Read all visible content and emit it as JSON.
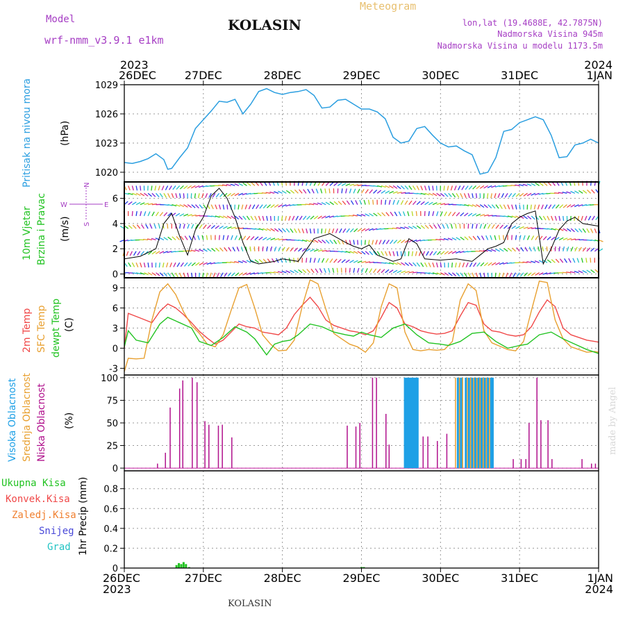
{
  "header": {
    "model_label": "Model",
    "model_name": "wrf-nmm_v3.9.1 e1km",
    "title": "KOLASIN",
    "meteogram": "Meteogram",
    "lonlat": "lon,lat (19.4688E, 42.7875N)",
    "elevation": "Nadmorska Visina 945m",
    "model_elevation": "Nadmorska Visina u modelu 1173.5m"
  },
  "footer": "KOLASIN",
  "signature": "made by Angel",
  "colors": {
    "pressure": "#2a9ee0",
    "temp2m": "#f04848",
    "sfc_temp": "#e8a030",
    "dewpoint": "#22c322",
    "cloud_high": "#1ea0e6",
    "cloud_mid": "#e8a030",
    "cloud_low": "#b0108c",
    "precip_total": "#22c322",
    "grid": "#999999",
    "magenta_label": "#a63ec4"
  },
  "chart_data": [
    {
      "type": "line",
      "panel": "pressure",
      "ylabel": [
        "Pritisak na nivou mora",
        "(hPa)"
      ],
      "ylim": [
        1019,
        1029
      ],
      "yticks": [
        1020,
        1023,
        1026,
        1029
      ],
      "x_top_labels": [
        [
          "2023",
          "26DEC"
        ],
        [
          "",
          "27DEC"
        ],
        [
          "",
          "28DEC"
        ],
        [
          "",
          "29DEC"
        ],
        [
          "",
          "30DEC"
        ],
        [
          "",
          "31DEC"
        ],
        [
          "2024",
          "1JAN"
        ]
      ],
      "series": [
        {
          "x": [
            0,
            0.1,
            0.2,
            0.3,
            0.4,
            0.5,
            0.55,
            0.6,
            0.7,
            0.8,
            0.9,
            1.0,
            1.1,
            1.2,
            1.3,
            1.4,
            1.5,
            1.6,
            1.7,
            1.8,
            1.9,
            2.0,
            2.1,
            2.2,
            2.3,
            2.4,
            2.5,
            2.6,
            2.7,
            2.8,
            2.9,
            3.0,
            3.1,
            3.2,
            3.3,
            3.4,
            3.5,
            3.6,
            3.7,
            3.8,
            3.9,
            4.0,
            4.1,
            4.2,
            4.3,
            4.4,
            4.5,
            4.6,
            4.7,
            4.8,
            4.9,
            5.0,
            5.1,
            5.2,
            5.3,
            5.4,
            5.5,
            5.6,
            5.7,
            5.8,
            5.9,
            6.0
          ],
          "values": [
            1021.0,
            1020.9,
            1021.1,
            1021.4,
            1021.9,
            1021.3,
            1020.3,
            1020.4,
            1021.5,
            1022.5,
            1024.5,
            1025.4,
            1026.3,
            1027.3,
            1027.2,
            1027.5,
            1026.0,
            1027.0,
            1028.3,
            1028.6,
            1028.2,
            1028.0,
            1028.2,
            1028.3,
            1028.5,
            1027.9,
            1026.6,
            1026.7,
            1027.4,
            1027.5,
            1027.0,
            1026.5,
            1026.5,
            1026.2,
            1025.5,
            1023.6,
            1023.0,
            1023.2,
            1024.5,
            1024.7,
            1023.8,
            1023.0,
            1022.6,
            1022.7,
            1022.2,
            1021.8,
            1019.8,
            1020.0,
            1021.5,
            1024.2,
            1024.4,
            1025.1,
            1025.4,
            1025.7,
            1025.4,
            1023.8,
            1021.5,
            1021.6,
            1022.8,
            1023.0,
            1023.4,
            1023.0
          ],
          "name": ""
        }
      ]
    },
    {
      "type": "line",
      "panel": "wind",
      "ylabel": [
        "10m Vjetar",
        "Brzina i Pravac",
        "(m/s)"
      ],
      "compass": {
        "n": "N",
        "s": "S",
        "e": "E",
        "w": "W"
      },
      "ylim": [
        -0.3,
        7.3
      ],
      "yticks": [
        0,
        2,
        4,
        6
      ],
      "series": [
        {
          "name": "wind speed",
          "x": [
            0,
            0.2,
            0.4,
            0.5,
            0.6,
            0.7,
            0.8,
            0.9,
            1.0,
            1.1,
            1.2,
            1.3,
            1.4,
            1.5,
            1.6,
            1.7,
            1.8,
            1.9,
            2.0,
            2.2,
            2.4,
            2.6,
            2.8,
            2.9,
            3.0,
            3.1,
            3.2,
            3.4,
            3.5,
            3.6,
            3.7,
            3.8,
            4.0,
            4.2,
            4.4,
            4.5,
            4.6,
            4.7,
            4.8,
            4.9,
            5.0,
            5.1,
            5.2,
            5.3,
            5.4,
            5.5,
            5.6,
            5.7,
            5.8,
            6.0
          ],
          "values": [
            1.2,
            1.4,
            2.0,
            4.0,
            4.8,
            3.0,
            1.5,
            3.5,
            4.5,
            6.2,
            6.8,
            6.0,
            4.5,
            2.5,
            1.0,
            0.8,
            0.9,
            1.0,
            1.2,
            1.0,
            2.8,
            3.2,
            2.5,
            2.2,
            2.0,
            2.3,
            1.5,
            1.0,
            1.2,
            2.8,
            2.4,
            1.2,
            1.1,
            1.2,
            1.0,
            1.5,
            2.0,
            2.2,
            2.5,
            4.0,
            4.5,
            4.8,
            5.0,
            0.8,
            2.0,
            3.5,
            4.2,
            4.5,
            4.0,
            3.8
          ]
        }
      ]
    },
    {
      "type": "line",
      "panel": "temperature",
      "ylabel": [
        "2m Temp",
        "SFC Temp",
        "dewpt Temp",
        "(C)"
      ],
      "ylim": [
        -4,
        10.5
      ],
      "yticks": [
        -3,
        0,
        3,
        6,
        9
      ],
      "series": [
        {
          "name": "2m Temp",
          "x": [
            0,
            0.05,
            0.2,
            0.35,
            0.45,
            0.55,
            0.65,
            0.75,
            0.85,
            0.95,
            1.05,
            1.15,
            1.25,
            1.35,
            1.45,
            1.55,
            1.65,
            1.75,
            1.85,
            1.95,
            2.05,
            2.15,
            2.25,
            2.35,
            2.45,
            2.55,
            2.65,
            2.75,
            2.85,
            2.95,
            3.05,
            3.15,
            3.25,
            3.35,
            3.45,
            3.55,
            3.65,
            3.75,
            3.85,
            3.95,
            4.05,
            4.15,
            4.25,
            4.35,
            4.45,
            4.55,
            4.65,
            4.75,
            4.85,
            4.95,
            5.05,
            5.15,
            5.25,
            5.35,
            5.45,
            5.55,
            5.65,
            5.75,
            5.85,
            5.95,
            6.0
          ],
          "values": [
            0,
            5.2,
            4.5,
            3.8,
            5.5,
            6.6,
            6.0,
            5.0,
            3.8,
            2.5,
            1.5,
            0.6,
            1.2,
            2.4,
            3.6,
            3.2,
            3.0,
            2.4,
            2.2,
            2.0,
            3.0,
            5.0,
            6.4,
            7.6,
            6.2,
            4.2,
            3.4,
            3.0,
            2.6,
            2.4,
            2.0,
            2.6,
            4.6,
            6.8,
            6.0,
            3.6,
            3.2,
            2.6,
            2.3,
            2.1,
            2.2,
            2.6,
            4.8,
            6.8,
            6.4,
            3.6,
            2.6,
            2.4,
            2.0,
            1.8,
            2.0,
            3.2,
            5.4,
            7.2,
            6.2,
            3.0,
            2.0,
            1.6,
            1.2,
            1.0,
            0.9
          ]
        },
        {
          "name": "SFC Temp",
          "x": [
            0,
            0.05,
            0.15,
            0.25,
            0.35,
            0.45,
            0.55,
            0.65,
            0.75,
            0.85,
            0.95,
            1.05,
            1.15,
            1.25,
            1.35,
            1.45,
            1.55,
            1.65,
            1.75,
            1.85,
            1.95,
            2.05,
            2.15,
            2.25,
            2.35,
            2.45,
            2.55,
            2.65,
            2.75,
            2.85,
            2.95,
            3.05,
            3.15,
            3.25,
            3.35,
            3.45,
            3.55,
            3.65,
            3.75,
            3.85,
            3.95,
            4.05,
            4.15,
            4.25,
            4.35,
            4.45,
            4.55,
            4.65,
            4.75,
            4.85,
            4.95,
            5.05,
            5.15,
            5.25,
            5.35,
            5.45,
            5.55,
            5.65,
            5.75,
            5.85,
            5.95,
            6.0
          ],
          "values": [
            -3.5,
            -1.5,
            -1.6,
            -1.5,
            4.2,
            8.4,
            9.6,
            8.0,
            5.4,
            3.4,
            2.2,
            0.6,
            0.2,
            2.0,
            5.6,
            9.0,
            9.5,
            6.0,
            2.0,
            0.6,
            -0.4,
            -0.3,
            1.2,
            6.2,
            10.2,
            9.6,
            5.8,
            2.2,
            1.4,
            0.6,
            0.2,
            -0.6,
            0.8,
            6.2,
            9.6,
            9.0,
            2.4,
            -0.2,
            -0.4,
            -0.2,
            -0.3,
            -0.2,
            1.0,
            7.2,
            9.6,
            8.6,
            2.6,
            0.8,
            0.3,
            -0.2,
            -0.4,
            1.0,
            5.6,
            10.0,
            9.8,
            4.2,
            1.4,
            0.2,
            -0.2,
            -0.6,
            -0.5,
            -0.6
          ]
        },
        {
          "name": "dewpt Temp",
          "x": [
            0,
            0.05,
            0.15,
            0.3,
            0.45,
            0.55,
            0.7,
            0.85,
            0.95,
            1.1,
            1.25,
            1.4,
            1.55,
            1.65,
            1.8,
            1.9,
            2.0,
            2.1,
            2.2,
            2.35,
            2.5,
            2.65,
            2.8,
            2.9,
            3.0,
            3.1,
            3.25,
            3.4,
            3.55,
            3.7,
            3.85,
            4.0,
            4.1,
            4.25,
            4.4,
            4.55,
            4.7,
            4.85,
            5.0,
            5.1,
            5.25,
            5.4,
            5.55,
            5.7,
            5.85,
            6.0
          ],
          "values": [
            0.2,
            2.6,
            1.2,
            0.8,
            3.6,
            4.6,
            3.8,
            3.0,
            1.0,
            0.4,
            1.6,
            3.2,
            2.4,
            1.4,
            -1.0,
            0.6,
            1.0,
            1.2,
            2.0,
            3.6,
            3.2,
            2.4,
            2.0,
            1.8,
            2.4,
            2.0,
            1.6,
            3.0,
            3.6,
            2.0,
            0.8,
            0.6,
            0.4,
            1.0,
            2.2,
            2.4,
            1.0,
            0.0,
            0.4,
            0.6,
            2.0,
            2.4,
            1.4,
            0.6,
            -0.2,
            -0.8
          ]
        }
      ]
    },
    {
      "type": "bar",
      "panel": "clouds",
      "ylabel": [
        "Visoka Oblacnost",
        "Srednja Oblacnost",
        "Niska Oblacnost",
        "(%)"
      ],
      "ylim": [
        -3,
        103
      ],
      "yticks": [
        0,
        25,
        50,
        75,
        100
      ],
      "series": [
        {
          "name": "Niska Oblacnost",
          "x": [
            0.42,
            0.52,
            0.58,
            0.7,
            0.74,
            0.86,
            0.92,
            1.02,
            1.07,
            1.19,
            1.24,
            1.36,
            2.82,
            2.93,
            2.98,
            3.14,
            3.19,
            3.31,
            3.35,
            3.71,
            3.78,
            3.84,
            3.96,
            4.08,
            4.92,
            5.02,
            5.08,
            5.12,
            5.22,
            5.27,
            5.36,
            5.41,
            5.79,
            5.91,
            5.96
          ],
          "values": [
            5,
            17,
            67,
            88,
            97,
            100,
            95,
            52,
            48,
            47,
            48,
            34,
            47,
            46,
            50,
            100,
            100,
            60,
            26,
            35,
            35,
            35,
            30,
            38,
            10,
            10,
            10,
            50,
            100,
            53,
            53,
            10,
            10,
            5,
            5
          ]
        },
        {
          "name": "Visoka Oblacnost",
          "x": [
            3.55,
            3.57,
            3.59,
            3.61,
            3.63,
            3.65,
            3.67,
            3.69,
            3.71,
            4.22,
            4.26,
            4.32,
            4.36,
            4.4,
            4.44,
            4.48,
            4.52,
            4.56,
            4.6,
            4.64,
            4.66
          ],
          "values": [
            100,
            100,
            100,
            100,
            100,
            100,
            100,
            100,
            100,
            100,
            100,
            100,
            100,
            100,
            100,
            100,
            100,
            100,
            100,
            100,
            100
          ]
        },
        {
          "name": "Srednja Oblacnost",
          "x": [
            4.19,
            4.24,
            4.28,
            4.34,
            4.38,
            4.42,
            4.46,
            4.5,
            4.54,
            4.58,
            4.62
          ],
          "values": [
            100,
            100,
            100,
            100,
            100,
            100,
            100,
            100,
            100,
            100,
            100
          ]
        }
      ]
    },
    {
      "type": "bar",
      "panel": "precip",
      "ylabel": [
        "1hr Precip (mm)"
      ],
      "legend": [
        "Ukupna Kisa",
        "Konvek.Kisa",
        "Zaledj.Kisa",
        "Snijeg",
        "Grad"
      ],
      "ylim": [
        0,
        0.98
      ],
      "yticks": [
        0,
        0.2,
        0.4,
        0.6,
        0.8
      ],
      "x_bottom_labels": [
        [
          "26DEC",
          "2023"
        ],
        [
          "27DEC",
          ""
        ],
        [
          "28DEC",
          ""
        ],
        [
          "29DEC",
          ""
        ],
        [
          "30DEC",
          ""
        ],
        [
          "31DEC",
          ""
        ],
        [
          "1JAN",
          "2024"
        ]
      ],
      "series": [
        {
          "name": "Ukupna Kisa",
          "x": [
            0.66,
            0.69,
            0.72,
            0.75,
            0.78,
            0.82,
            3.0,
            3.03
          ],
          "values": [
            0.03,
            0.05,
            0.04,
            0.06,
            0.04,
            0.01,
            0.01,
            0.01
          ]
        }
      ]
    }
  ]
}
